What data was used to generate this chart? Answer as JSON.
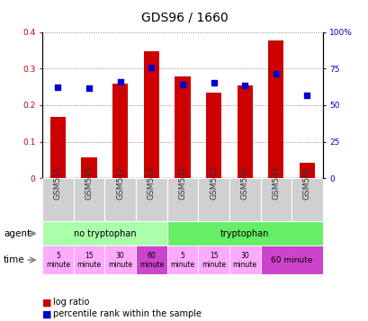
{
  "title": "GDS96 / 1660",
  "samples": [
    "GSM515",
    "GSM516",
    "GSM517",
    "GSM519",
    "GSM531",
    "GSM532",
    "GSM533",
    "GSM534",
    "GSM565"
  ],
  "log_ratio": [
    0.167,
    0.057,
    0.258,
    0.348,
    0.278,
    0.235,
    0.255,
    0.378,
    0.042
  ],
  "percentile_pct": [
    62.0,
    61.8,
    65.8,
    75.5,
    64.3,
    65.5,
    63.8,
    71.3,
    57.0
  ],
  "bar_color": "#cc0000",
  "dot_color": "#0000cc",
  "ylim_left": [
    0,
    0.4
  ],
  "ylim_right": [
    0,
    100
  ],
  "yticks_left": [
    0,
    0.1,
    0.2,
    0.3,
    0.4
  ],
  "ytick_labels_left": [
    "0",
    "0.1",
    "0.2",
    "0.3",
    "0.4"
  ],
  "yticks_right": [
    0,
    25,
    50,
    75,
    100
  ],
  "ytick_labels_right": [
    "0",
    "25",
    "50",
    "75",
    "100%"
  ],
  "agent_no_tryp": "no tryptophan",
  "agent_tryp": "tryptophan",
  "agent_no_tryp_color": "#aaffaa",
  "agent_tryp_color": "#66ee66",
  "time_light_color": "#ffaaff",
  "time_dark_color": "#cc44cc",
  "bar_color_red": "#cc0000",
  "dot_color_blue": "#0000cc",
  "grid_color": "#888888",
  "title_fontsize": 10,
  "tick_fontsize": 6.5,
  "bar_width": 0.5
}
